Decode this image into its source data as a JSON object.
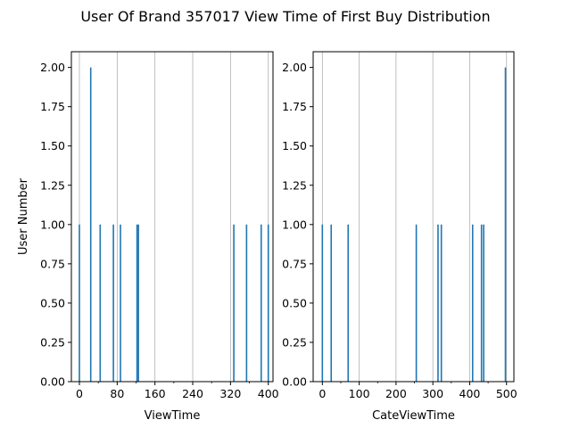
{
  "figure": {
    "title": "User Of Brand 357017 View Time of First Buy Distribution"
  },
  "chart_data": [
    {
      "type": "bar",
      "xlabel": "ViewTime",
      "ylabel": "User Number",
      "xlim": [
        -17,
        410
      ],
      "ylim": [
        0,
        2.1
      ],
      "xticks": [
        0,
        80,
        160,
        240,
        320,
        400
      ],
      "xtick_labels": [
        "0",
        "80",
        "160",
        "240",
        "320",
        "400"
      ],
      "minor_xticks_between": true,
      "yticks": [
        0,
        0.25,
        0.5,
        0.75,
        1.0,
        1.25,
        1.5,
        1.75,
        2.0
      ],
      "ytick_labels": [
        "0.00",
        "0.25",
        "0.50",
        "0.75",
        "1.00",
        "1.25",
        "1.50",
        "1.75",
        "2.00"
      ],
      "grid": "x-major",
      "color": "#1f77b4",
      "bars": [
        {
          "x": 0,
          "value": 1
        },
        {
          "x": 24,
          "value": 2
        },
        {
          "x": 44,
          "value": 1
        },
        {
          "x": 72,
          "value": 1
        },
        {
          "x": 87,
          "value": 1
        },
        {
          "x": 122,
          "value": 1
        },
        {
          "x": 125,
          "value": 1
        },
        {
          "x": 327,
          "value": 1
        },
        {
          "x": 354,
          "value": 1
        },
        {
          "x": 385,
          "value": 1
        },
        {
          "x": 400,
          "value": 1
        }
      ]
    },
    {
      "type": "bar",
      "xlabel": "CateViewTime",
      "ylabel": "",
      "xlim": [
        -25,
        520
      ],
      "ylim": [
        0,
        2.1
      ],
      "xticks": [
        0,
        100,
        200,
        300,
        400,
        500
      ],
      "xtick_labels": [
        "0",
        "100",
        "200",
        "300",
        "400",
        "500"
      ],
      "minor_xticks_between": true,
      "yticks": [
        0,
        0.25,
        0.5,
        0.75,
        1.0,
        1.25,
        1.5,
        1.75,
        2.0
      ],
      "ytick_labels": [
        "0.00",
        "0.25",
        "0.50",
        "0.75",
        "1.00",
        "1.25",
        "1.50",
        "1.75",
        "2.00"
      ],
      "grid": "x-major",
      "color": "#1f77b4",
      "bars": [
        {
          "x": 0,
          "value": 1
        },
        {
          "x": 24,
          "value": 1
        },
        {
          "x": 70,
          "value": 1
        },
        {
          "x": 255,
          "value": 1
        },
        {
          "x": 314,
          "value": 1
        },
        {
          "x": 323,
          "value": 1
        },
        {
          "x": 408,
          "value": 1
        },
        {
          "x": 432,
          "value": 1
        },
        {
          "x": 438,
          "value": 1
        },
        {
          "x": 497,
          "value": 2
        }
      ]
    }
  ]
}
